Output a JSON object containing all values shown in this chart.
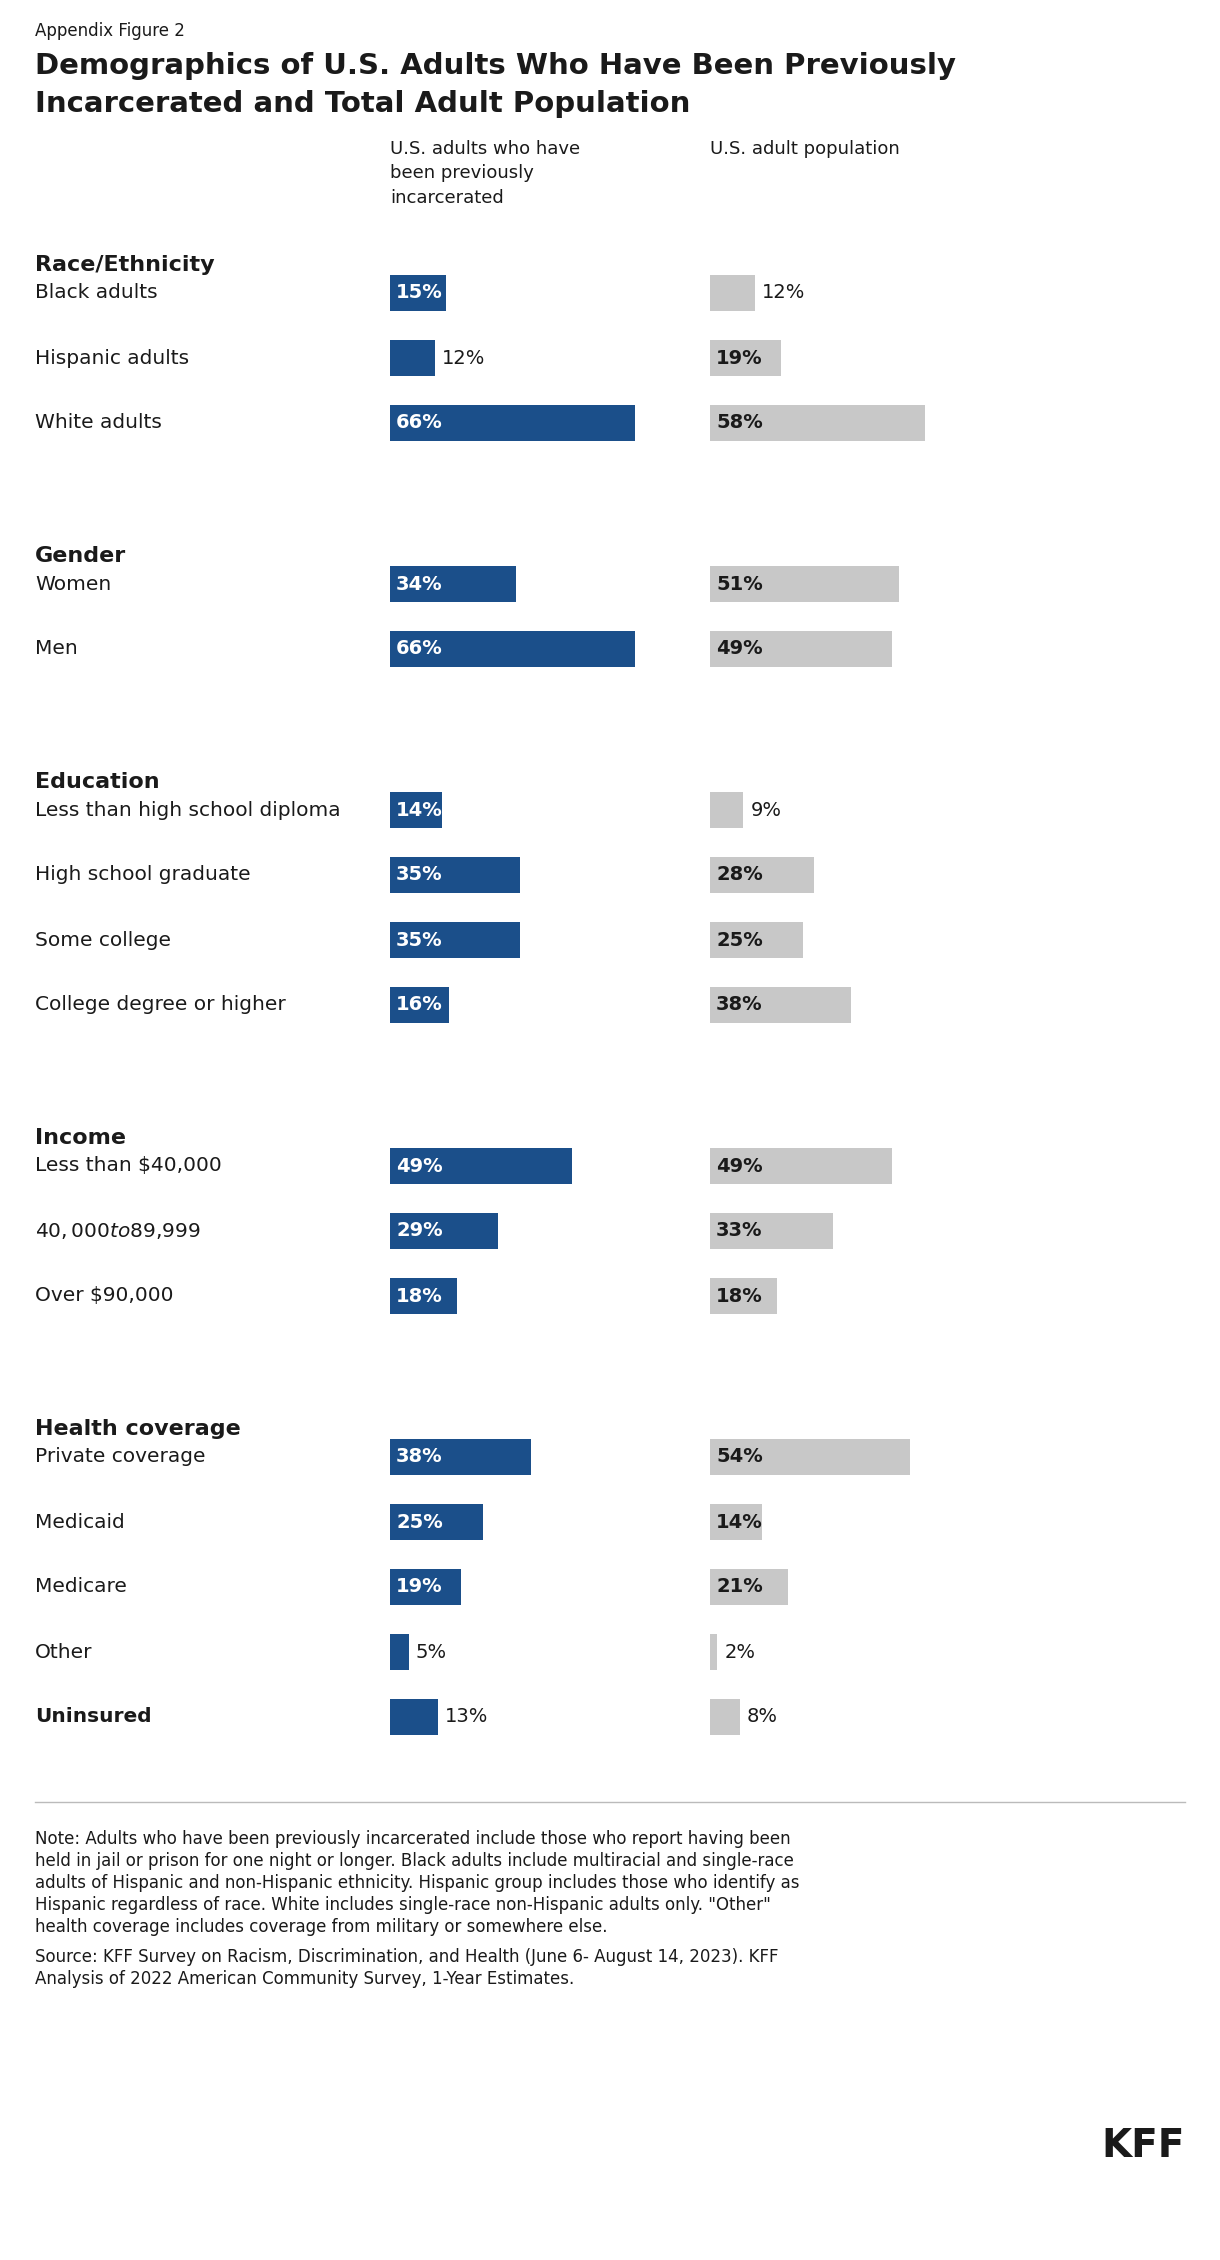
{
  "appendix_label": "Appendix Figure 2",
  "title_line1": "Demographics of U.S. Adults Who Have Been Previously",
  "title_line2": "Incarcerated and Total Adult Population",
  "col1_header": "U.S. adults who have\nbeen previously\nincarcerated",
  "col2_header": "U.S. adult population",
  "blue_color": "#1B4F8A",
  "gray_color": "#C8C8C8",
  "text_color": "#1a1a1a",
  "sections": [
    {
      "section_title": "Race/Ethnicity",
      "rows": [
        {
          "label": "Black adults",
          "val1": 15,
          "val2": 12
        },
        {
          "label": "Hispanic adults",
          "val1": 12,
          "val2": 19
        },
        {
          "label": "White adults",
          "val1": 66,
          "val2": 58
        }
      ]
    },
    {
      "section_title": "Gender",
      "rows": [
        {
          "label": "Women",
          "val1": 34,
          "val2": 51
        },
        {
          "label": "Men",
          "val1": 66,
          "val2": 49
        }
      ]
    },
    {
      "section_title": "Education",
      "rows": [
        {
          "label": "Less than high school diploma",
          "val1": 14,
          "val2": 9
        },
        {
          "label": "High school graduate",
          "val1": 35,
          "val2": 28
        },
        {
          "label": "Some college",
          "val1": 35,
          "val2": 25
        },
        {
          "label": "College degree or higher",
          "val1": 16,
          "val2": 38
        }
      ]
    },
    {
      "section_title": "Income",
      "rows": [
        {
          "label": "Less than $40,000",
          "val1": 49,
          "val2": 49
        },
        {
          "label": "$40,000 to $89,999",
          "val1": 29,
          "val2": 33
        },
        {
          "label": "Over $90,000",
          "val1": 18,
          "val2": 18
        }
      ]
    },
    {
      "section_title": "Health coverage",
      "rows": [
        {
          "label": "Private coverage",
          "val1": 38,
          "val2": 54
        },
        {
          "label": "Medicaid",
          "val1": 25,
          "val2": 14
        },
        {
          "label": "Medicare",
          "val1": 19,
          "val2": 21
        },
        {
          "label": "Other",
          "val1": 5,
          "val2": 2
        },
        {
          "label": "Uninsured",
          "val1": 13,
          "val2": 8,
          "bold": true
        }
      ]
    }
  ],
  "note_line1": "Note: Adults who have been previously incarcerated include those who report having been",
  "note_line2": "held in jail or prison for one night or longer. Black adults include multiracial and single-race",
  "note_line3": "adults of Hispanic and non-Hispanic ethnicity. Hispanic group includes those who identify as",
  "note_line4": "Hispanic regardless of race. White includes single-race non-Hispanic adults only. \"Other\"",
  "note_line5": "health coverage includes coverage from military or somewhere else.",
  "source_line1": "Source: KFF Survey on Racism, Discrimination, and Health (June 6- August 14, 2023). KFF",
  "source_line2": "Analysis of 2022 American Community Survey, 1-Year Estimates."
}
